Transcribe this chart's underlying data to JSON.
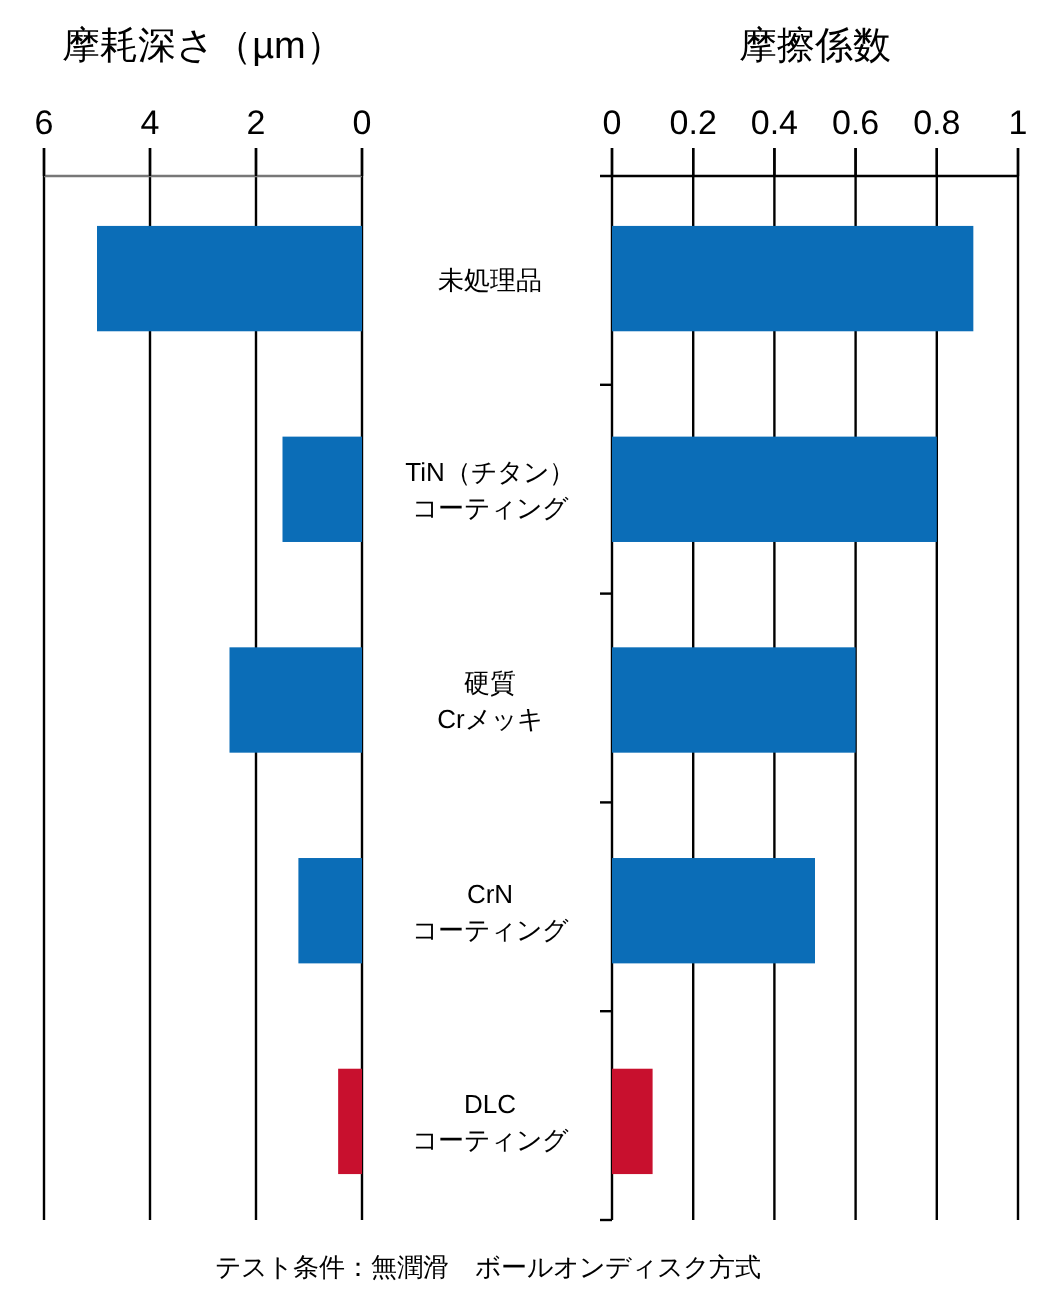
{
  "chart_data": [
    {
      "type": "bar",
      "orientation": "horizontal",
      "title": "摩耗深さ（µm）",
      "categories": [
        "未処理品",
        "TiN（チタン）コーティング",
        "硬質Crメッキ",
        "CrNコーティング",
        "DLCコーティング"
      ],
      "values": [
        5.0,
        1.5,
        2.5,
        1.2,
        0.45
      ],
      "colors": [
        "#0b6db7",
        "#0b6db7",
        "#0b6db7",
        "#0b6db7",
        "#c8102e"
      ],
      "xlim": [
        6,
        0
      ],
      "xticks": [
        6,
        4,
        2,
        0
      ],
      "grid": "x",
      "tick_labels": "x"
    },
    {
      "type": "bar",
      "orientation": "horizontal",
      "title": "摩擦係数",
      "categories": [
        "未処理品",
        "TiN（チタン）コーティング",
        "硬質Crメッキ",
        "CrNコーティング",
        "DLCコーティング"
      ],
      "values": [
        0.89,
        0.8,
        0.6,
        0.5,
        0.1
      ],
      "colors": [
        "#0b6db7",
        "#0b6db7",
        "#0b6db7",
        "#0b6db7",
        "#c8102e"
      ],
      "xlim": [
        0,
        1
      ],
      "xticks": [
        0,
        0.2,
        0.4,
        0.6,
        0.8,
        1
      ],
      "grid": "x",
      "annotations": [
        "テスト条件：無潤滑　ボールオンディスク方式"
      ]
    }
  ]
}
